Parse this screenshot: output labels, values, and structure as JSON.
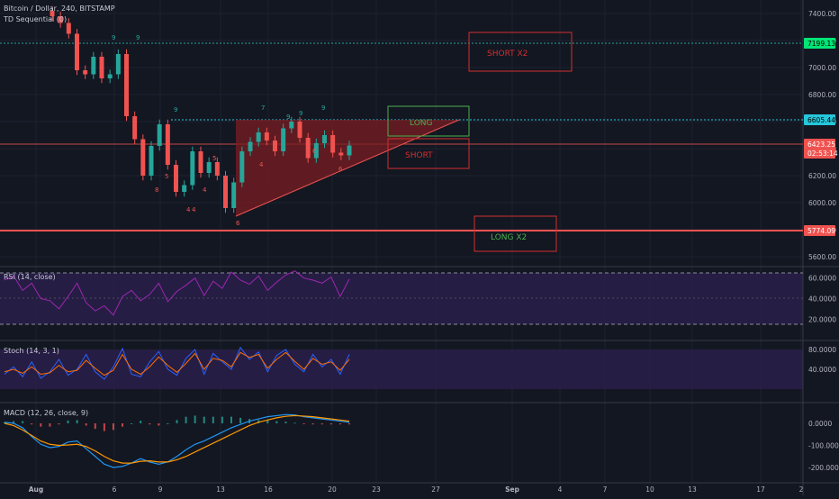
{
  "header": {
    "symbol": "Bitcoin / Dollar, 240, BITSTAMP",
    "study": "TD Sequential (0)"
  },
  "panes": {
    "rsi": "RSI (14, close)",
    "stoch": "Stoch (14, 3, 1)",
    "macd": "MACD (12, 26, close, 9)"
  },
  "price_axis": {
    "ticks": [
      "7400.00",
      "7200.00",
      "7000.00",
      "6800.00",
      "6600.00",
      "6400.00",
      "6200.00",
      "6000.00",
      "5800.00",
      "5600.00"
    ],
    "badges": {
      "short2": "7199.13",
      "long": "6605.44",
      "last": "6423.25",
      "countdown": "02:53:14",
      "long2": "5774.09"
    }
  },
  "rsi_axis": [
    "60.0000",
    "40.0000",
    "20.0000"
  ],
  "stoch_axis": [
    "80.0000",
    "40.0000"
  ],
  "macd_axis": [
    "0.0000",
    "-100.0000",
    "-200.0000"
  ],
  "x_axis": [
    "Aug",
    "6",
    "9",
    "13",
    "16",
    "20",
    "23",
    "27",
    "Sep",
    "4",
    "7",
    "10",
    "13",
    "17",
    "2"
  ],
  "annotations": {
    "short_x2": "SHORT X2",
    "long": "LONG",
    "short": "SHORT",
    "long_x2": "LONG X2"
  },
  "td_labels": [
    "9",
    "9",
    "9",
    "4",
    "4",
    "6",
    "7",
    "9",
    "8",
    "5",
    "4",
    "9",
    "9",
    "5",
    "6",
    "6",
    "4"
  ],
  "colors": {
    "background": "#131722",
    "up": "#26a69a",
    "down": "#ef5350",
    "rsi_line": "#9c27b0",
    "pane_fill": "#2a1f4a",
    "macd_line": "#2196f3",
    "signal_line": "#ff9800",
    "stoch_k": "#2962ff",
    "stoch_d": "#ff6d00"
  },
  "chart_data": [
    {
      "type": "line",
      "title": "Bitcoin / Dollar, 240, BITSTAMP",
      "series": [
        {
          "values": [
            7380,
            7330,
            7250,
            6980,
            6950,
            7080,
            6920,
            6950,
            7100,
            6640,
            6470,
            6200,
            6420,
            6580,
            6280,
            6080,
            6130,
            6380,
            6220,
            6300,
            6200,
            5960,
            6150,
            6380,
            6450,
            6520,
            6460,
            6380,
            6550,
            6600,
            6480,
            6330,
            6440,
            6500,
            6370,
            6350,
            6423
          ]
        }
      ],
      "ylim": [
        5520,
        7480
      ],
      "hlines": [
        7199.13,
        6605.44,
        6423.25,
        5774.09
      ]
    },
    {
      "type": "line",
      "title": "RSI (14, close)",
      "series": [
        {
          "values": [
            58,
            62,
            48,
            55,
            40,
            38,
            30,
            42,
            55,
            36,
            28,
            33,
            24,
            42,
            48,
            38,
            44,
            55,
            37,
            47,
            53,
            60,
            43,
            57,
            50,
            66,
            58,
            54,
            62,
            48,
            56,
            63,
            67,
            60,
            58,
            55,
            61,
            42,
            59
          ]
        }
      ],
      "ylim": [
        15,
        70
      ]
    },
    {
      "type": "line",
      "title": "Stoch (14, 3, 1)",
      "series": [
        {
          "values": [
            30,
            45,
            25,
            55,
            22,
            35,
            60,
            28,
            40,
            70,
            35,
            20,
            45,
            82,
            30,
            25,
            55,
            76,
            40,
            28,
            62,
            80,
            30,
            72,
            55,
            40,
            84,
            60,
            75,
            35,
            68,
            80,
            50,
            35,
            70,
            45,
            60,
            30,
            70
          ]
        },
        {
          "values": [
            35,
            40,
            32,
            45,
            30,
            33,
            48,
            35,
            38,
            58,
            42,
            28,
            38,
            70,
            40,
            30,
            45,
            65,
            48,
            34,
            52,
            72,
            40,
            62,
            58,
            45,
            74,
            64,
            70,
            42,
            60,
            74,
            56,
            40,
            62,
            50,
            55,
            38,
            60
          ]
        }
      ],
      "ylim": [
        0,
        100
      ]
    },
    {
      "type": "bar",
      "title": "MACD (12, 26, close, 9)",
      "series": [
        {
          "values": [
            5,
            0,
            -20,
            -60,
            -95,
            -110,
            -105,
            -85,
            -80,
            -115,
            -150,
            -185,
            -200,
            -195,
            -180,
            -160,
            -175,
            -185,
            -175,
            -150,
            -120,
            -95,
            -80,
            -60,
            -40,
            -20,
            -5,
            10,
            20,
            30,
            35,
            40,
            38,
            30,
            25,
            20,
            15,
            10,
            5
          ]
        },
        {
          "values": [
            0,
            -10,
            -30,
            -55,
            -80,
            -95,
            -100,
            -98,
            -95,
            -105,
            -125,
            -150,
            -170,
            -180,
            -180,
            -172,
            -170,
            -175,
            -175,
            -165,
            -150,
            -130,
            -110,
            -90,
            -70,
            -50,
            -30,
            -10,
            5,
            15,
            25,
            32,
            35,
            33,
            30,
            25,
            20,
            15,
            10
          ]
        },
        {
          "values": [
            5,
            10,
            10,
            -5,
            -15,
            -15,
            -5,
            13,
            15,
            -10,
            -25,
            -35,
            -30,
            -15,
            0,
            12,
            -5,
            -10,
            0,
            15,
            30,
            35,
            30,
            30,
            30,
            30,
            25,
            20,
            15,
            15,
            10,
            8,
            3,
            -3,
            -5,
            -5,
            -5,
            -5,
            -5
          ]
        }
      ],
      "ylim": [
        -230,
        70
      ]
    }
  ]
}
